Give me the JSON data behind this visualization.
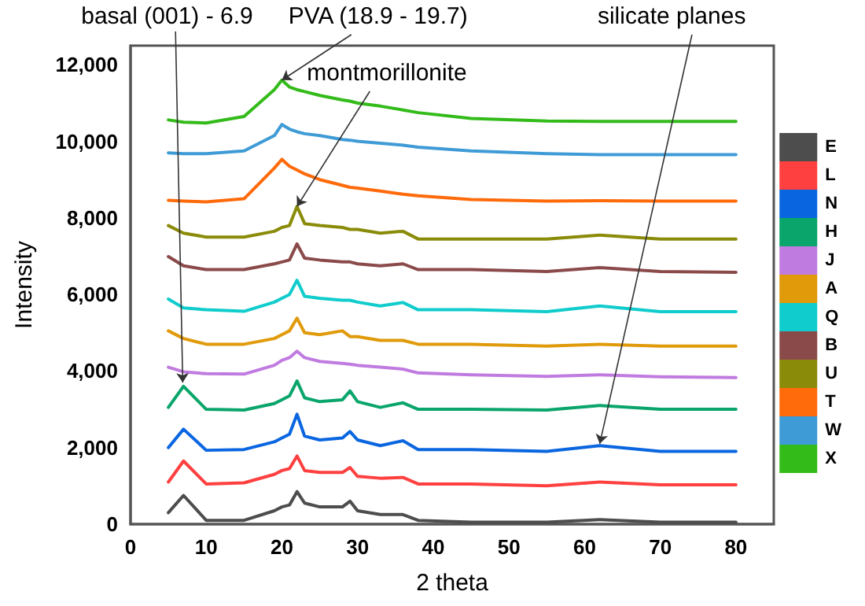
{
  "chart_data": {
    "type": "line",
    "xlabel": "2 theta",
    "ylabel": "Intensity",
    "x": [
      5,
      7,
      10,
      15,
      19,
      20,
      21,
      22,
      23,
      25,
      28,
      29,
      30,
      33,
      36,
      38,
      45,
      55,
      62,
      70,
      80
    ],
    "series": [
      {
        "name": "E",
        "color": "#4d4d4d",
        "values": [
          300,
          750,
          100,
          100,
          350,
          450,
          500,
          850,
          550,
          450,
          450,
          600,
          350,
          250,
          250,
          100,
          50,
          50,
          120,
          50,
          50
        ]
      },
      {
        "name": "L",
        "color": "#ff4040",
        "values": [
          1100,
          1650,
          1050,
          1080,
          1300,
          1400,
          1450,
          1780,
          1400,
          1350,
          1350,
          1480,
          1250,
          1200,
          1220,
          1050,
          1050,
          1000,
          1100,
          1030,
          1030
        ]
      },
      {
        "name": "N",
        "color": "#0a66e0",
        "values": [
          2000,
          2480,
          1930,
          1950,
          2150,
          2250,
          2350,
          2870,
          2300,
          2200,
          2250,
          2420,
          2200,
          2050,
          2180,
          1950,
          1950,
          1900,
          2050,
          1900,
          1900
        ]
      },
      {
        "name": "H",
        "color": "#0aa56b",
        "values": [
          3050,
          3600,
          3000,
          2980,
          3150,
          3250,
          3350,
          3740,
          3300,
          3200,
          3250,
          3480,
          3200,
          3050,
          3170,
          3000,
          3000,
          2980,
          3100,
          3000,
          3000
        ]
      },
      {
        "name": "J",
        "color": "#c07be0",
        "values": [
          4100,
          3980,
          3930,
          3920,
          4150,
          4280,
          4350,
          4520,
          4350,
          4250,
          4200,
          4180,
          4150,
          4100,
          4050,
          3950,
          3900,
          3860,
          3900,
          3850,
          3830
        ]
      },
      {
        "name": "A",
        "color": "#e09a0a",
        "values": [
          5050,
          4850,
          4700,
          4700,
          4850,
          4950,
          5050,
          5380,
          5000,
          4950,
          5050,
          4900,
          4900,
          4800,
          4800,
          4700,
          4700,
          4650,
          4700,
          4650,
          4650
        ]
      },
      {
        "name": "Q",
        "color": "#10cccc",
        "values": [
          5880,
          5650,
          5600,
          5560,
          5800,
          5900,
          6000,
          6370,
          5950,
          5900,
          5850,
          5850,
          5800,
          5700,
          5790,
          5600,
          5600,
          5550,
          5700,
          5550,
          5550
        ]
      },
      {
        "name": "B",
        "color": "#8b4a4a",
        "values": [
          6990,
          6750,
          6650,
          6650,
          6800,
          6850,
          6900,
          7320,
          6950,
          6900,
          6850,
          6850,
          6800,
          6750,
          6800,
          6650,
          6650,
          6600,
          6700,
          6600,
          6580
        ]
      },
      {
        "name": "U",
        "color": "#8b8b0a",
        "values": [
          7800,
          7600,
          7500,
          7500,
          7650,
          7750,
          7800,
          8300,
          7850,
          7800,
          7750,
          7700,
          7700,
          7600,
          7650,
          7450,
          7450,
          7450,
          7550,
          7450,
          7450
        ]
      },
      {
        "name": "T",
        "color": "#ff6a0a",
        "values": [
          8460,
          8440,
          8420,
          8500,
          9300,
          9530,
          9350,
          9250,
          9150,
          9000,
          8850,
          8800,
          8780,
          8700,
          8620,
          8580,
          8480,
          8440,
          8450,
          8440,
          8440
        ]
      },
      {
        "name": "W",
        "color": "#3f9bd6",
        "values": [
          9700,
          9680,
          9680,
          9750,
          10150,
          10440,
          10320,
          10250,
          10200,
          10150,
          10050,
          10030,
          10000,
          9950,
          9900,
          9850,
          9750,
          9680,
          9650,
          9650,
          9650
        ]
      },
      {
        "name": "X",
        "color": "#33bb1a",
        "values": [
          10560,
          10500,
          10480,
          10650,
          11350,
          11600,
          11420,
          11350,
          11300,
          11200,
          11080,
          11050,
          11000,
          10920,
          10820,
          10750,
          10600,
          10530,
          10520,
          10520,
          10520
        ]
      }
    ],
    "xlim": [
      0,
      85
    ],
    "xticks": [
      0,
      10,
      20,
      30,
      40,
      50,
      60,
      70,
      80
    ],
    "ylim": [
      0,
      12500
    ],
    "yticks": [
      {
        "value": 0,
        "label": "0"
      },
      {
        "value": 2000,
        "label": "2,000"
      },
      {
        "value": 4000,
        "label": "4,000"
      },
      {
        "value": 6000,
        "label": "6,000"
      },
      {
        "value": 8000,
        "label": "8,000"
      },
      {
        "value": 10000,
        "label": "10,000"
      },
      {
        "value": 12000,
        "label": "12,000"
      }
    ],
    "annotations": [
      {
        "text": "basal (001) - 6.9",
        "x": 6.9,
        "y": 3700
      },
      {
        "text": "PVA (18.9 - 19.7)",
        "x": 20,
        "y": 11600
      },
      {
        "text": "montmorillonite",
        "x": 22,
        "y": 8300
      },
      {
        "text": "silicate planes",
        "x": 62,
        "y": 2100
      }
    ],
    "grid": false,
    "legend": "right",
    "marker": "none",
    "line_style": "solid"
  }
}
